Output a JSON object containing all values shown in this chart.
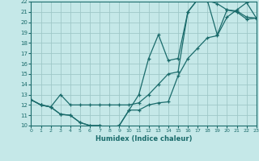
{
  "xlabel": "Humidex (Indice chaleur)",
  "bg_color": "#c5e8e8",
  "grid_color": "#9fc8c8",
  "line_color": "#1a6b6b",
  "xlim": [
    0,
    23
  ],
  "ylim": [
    10,
    22
  ],
  "xticks": [
    0,
    1,
    2,
    3,
    4,
    5,
    6,
    7,
    8,
    9,
    10,
    11,
    12,
    13,
    14,
    15,
    16,
    17,
    18,
    19,
    20,
    21,
    22,
    23
  ],
  "yticks": [
    10,
    11,
    12,
    13,
    14,
    15,
    16,
    17,
    18,
    19,
    20,
    21,
    22
  ],
  "curve1_x": [
    0,
    1,
    2,
    3,
    4,
    5,
    6,
    7,
    8,
    9,
    10,
    11,
    12,
    13,
    14,
    15,
    16,
    17,
    18,
    19,
    20,
    21,
    22,
    23
  ],
  "curve1_y": [
    12.5,
    12.0,
    11.8,
    11.1,
    11.0,
    10.3,
    10.0,
    10.0,
    9.8,
    10.0,
    11.5,
    13.0,
    16.5,
    18.8,
    16.3,
    16.5,
    21.0,
    22.2,
    22.1,
    18.8,
    21.2,
    21.0,
    20.3,
    20.4
  ],
  "curve2_x": [
    0,
    1,
    2,
    3,
    4,
    5,
    6,
    7,
    8,
    9,
    10,
    11,
    12,
    13,
    14,
    15,
    16,
    17,
    18,
    19,
    20,
    21,
    22,
    23
  ],
  "curve2_y": [
    12.5,
    12.0,
    11.8,
    11.1,
    11.0,
    10.3,
    10.0,
    10.0,
    9.8,
    10.0,
    11.5,
    11.5,
    12.0,
    12.2,
    12.3,
    14.8,
    16.5,
    17.5,
    18.5,
    18.7,
    20.5,
    21.2,
    21.9,
    20.4
  ],
  "curve3_x": [
    0,
    1,
    2,
    3,
    4,
    5,
    6,
    7,
    8,
    9,
    10,
    11,
    12,
    13,
    14,
    15,
    16,
    17,
    18,
    19,
    20,
    21,
    22,
    23
  ],
  "curve3_y": [
    12.5,
    12.0,
    11.8,
    13.0,
    12.0,
    12.0,
    12.0,
    12.0,
    12.0,
    12.0,
    12.0,
    12.2,
    13.0,
    14.0,
    15.0,
    15.2,
    21.0,
    22.2,
    22.1,
    21.8,
    21.2,
    21.1,
    20.5,
    20.4
  ]
}
